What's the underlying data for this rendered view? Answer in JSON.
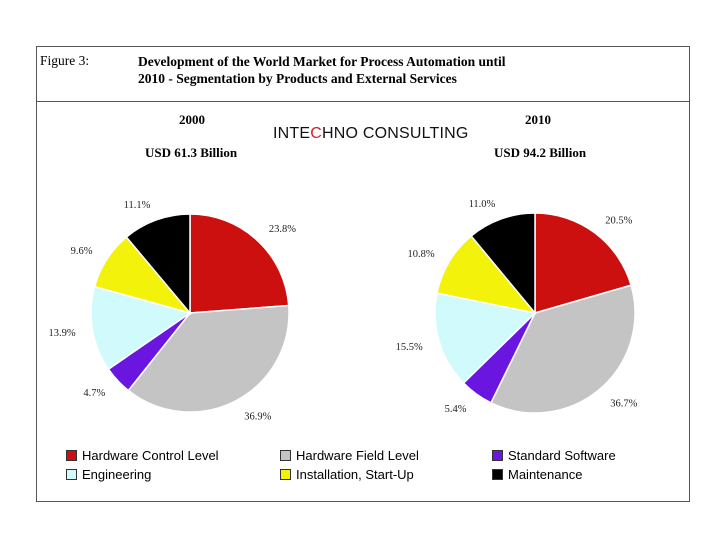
{
  "figure": {
    "label": "Figure 3:",
    "title_line1": "Development of the World Market for Process Automation until",
    "title_line2": "2010 - Segmentation by Products and External Services"
  },
  "brand": {
    "part1": "INTE",
    "part2": "C",
    "part3": "HNO CONSULTING"
  },
  "categories": [
    {
      "name": "Hardware Control Level",
      "color": "#cc1010"
    },
    {
      "name": "Hardware Field Level",
      "color": "#c4c4c4"
    },
    {
      "name": "Standard Software",
      "color": "#6a16e0"
    },
    {
      "name": "Engineering",
      "color": "#d0fafc"
    },
    {
      "name": "Installation, Start-Up",
      "color": "#f2f20a"
    },
    {
      "name": "Maintenance",
      "color": "#000000"
    }
  ],
  "chart_data": [
    {
      "type": "pie",
      "year": "2000",
      "total_label": "USD 61.3 Billion",
      "labels": [
        "Hardware Control Level",
        "Hardware Field Level",
        "Standard Software",
        "Engineering",
        "Installation, Start-Up",
        "Maintenance"
      ],
      "values": [
        23.8,
        36.9,
        4.7,
        13.9,
        9.6,
        11.1
      ],
      "value_labels": [
        "23.8%",
        "36.9%",
        "4.7%",
        "13.9%",
        "9.6%",
        "11.1%"
      ]
    },
    {
      "type": "pie",
      "year": "2010",
      "total_label": "USD 94.2 Billion",
      "labels": [
        "Hardware Control Level",
        "Hardware Field Level",
        "Standard Software",
        "Engineering",
        "Installation, Start-Up",
        "Maintenance"
      ],
      "values": [
        20.5,
        36.7,
        5.4,
        15.5,
        10.8,
        11.0
      ],
      "value_labels": [
        "20.5%",
        "36.7%",
        "5.4%",
        "15.5%",
        "10.8%",
        "11.0%"
      ]
    }
  ]
}
